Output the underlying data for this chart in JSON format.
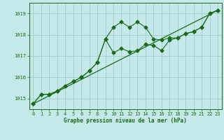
{
  "bg_color": "#c5e8e8",
  "grid_color": "#9ecece",
  "line_color": "#1a6b1a",
  "xlabel": "Graphe pression niveau de la mer (hPa)",
  "xlim": [
    -0.5,
    23.5
  ],
  "ylim": [
    1014.5,
    1019.5
  ],
  "yticks": [
    1015,
    1016,
    1017,
    1018,
    1019
  ],
  "xticks": [
    0,
    1,
    2,
    3,
    4,
    5,
    6,
    7,
    8,
    9,
    10,
    11,
    12,
    13,
    14,
    15,
    16,
    17,
    18,
    19,
    20,
    21,
    22,
    23
  ],
  "series1_x": [
    0,
    1,
    2,
    3,
    4,
    5,
    6,
    7,
    8,
    9,
    10,
    11,
    12,
    13,
    14,
    15,
    16,
    17,
    18,
    19,
    20,
    21,
    22,
    23
  ],
  "series1_y": [
    1014.75,
    1015.2,
    1015.2,
    1015.35,
    1015.6,
    1015.8,
    1016.0,
    1016.3,
    1016.7,
    1017.8,
    1018.35,
    1018.6,
    1018.35,
    1018.6,
    1018.35,
    1017.8,
    1017.75,
    1017.85,
    1017.85,
    1018.05,
    1018.15,
    1018.35,
    1019.0,
    1019.15
  ],
  "series2_x": [
    0,
    1,
    2,
    3,
    4,
    5,
    6,
    7,
    8,
    9,
    10,
    11,
    12,
    13,
    14,
    15,
    16,
    17,
    18,
    19,
    20,
    21,
    22,
    23
  ],
  "series2_y": [
    1014.75,
    1015.2,
    1015.2,
    1015.35,
    1015.6,
    1015.8,
    1016.0,
    1016.3,
    1016.7,
    1017.8,
    1017.15,
    1017.35,
    1017.2,
    1017.25,
    1017.55,
    1017.5,
    1017.25,
    1017.75,
    1017.85,
    1018.05,
    1018.15,
    1018.35,
    1019.0,
    1019.15
  ],
  "series3_x": [
    0,
    23
  ],
  "series3_y": [
    1014.75,
    1019.15
  ]
}
